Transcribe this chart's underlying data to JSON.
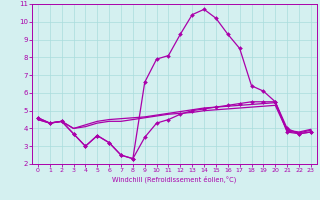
{
  "xlabel": "Windchill (Refroidissement éolien,°C)",
  "x_values": [
    0,
    1,
    2,
    3,
    4,
    5,
    6,
    7,
    8,
    9,
    10,
    11,
    12,
    13,
    14,
    15,
    16,
    17,
    18,
    19,
    20,
    21,
    22,
    23
  ],
  "line_main": [
    4.6,
    4.3,
    4.4,
    3.7,
    3.0,
    3.6,
    3.2,
    2.5,
    2.3,
    6.6,
    7.9,
    8.1,
    9.3,
    10.4,
    10.7,
    10.2,
    9.3,
    8.5,
    6.4,
    6.1,
    5.5,
    4.0,
    3.7,
    3.8
  ],
  "line_low": [
    4.6,
    4.3,
    4.4,
    3.7,
    3.0,
    3.6,
    3.2,
    2.5,
    2.3,
    3.5,
    4.3,
    4.5,
    4.8,
    5.0,
    5.1,
    5.2,
    5.3,
    5.4,
    5.5,
    5.5,
    5.5,
    3.8,
    3.7,
    3.8
  ],
  "line_mid1": [
    4.5,
    4.3,
    4.4,
    4.0,
    4.1,
    4.3,
    4.4,
    4.4,
    4.5,
    4.6,
    4.7,
    4.8,
    4.85,
    4.9,
    5.0,
    5.05,
    5.1,
    5.15,
    5.2,
    5.25,
    5.3,
    3.85,
    3.75,
    3.9
  ],
  "line_mid2": [
    4.5,
    4.3,
    4.4,
    4.0,
    4.2,
    4.4,
    4.5,
    4.55,
    4.6,
    4.65,
    4.75,
    4.85,
    4.95,
    5.05,
    5.15,
    5.2,
    5.25,
    5.3,
    5.35,
    5.4,
    5.45,
    3.9,
    3.8,
    3.95
  ],
  "ylim": [
    2,
    11
  ],
  "yticks": [
    2,
    3,
    4,
    5,
    6,
    7,
    8,
    9,
    10,
    11
  ],
  "line_color": "#aa00aa",
  "bg_color": "#d4f0f0",
  "grid_color": "#aadddd"
}
